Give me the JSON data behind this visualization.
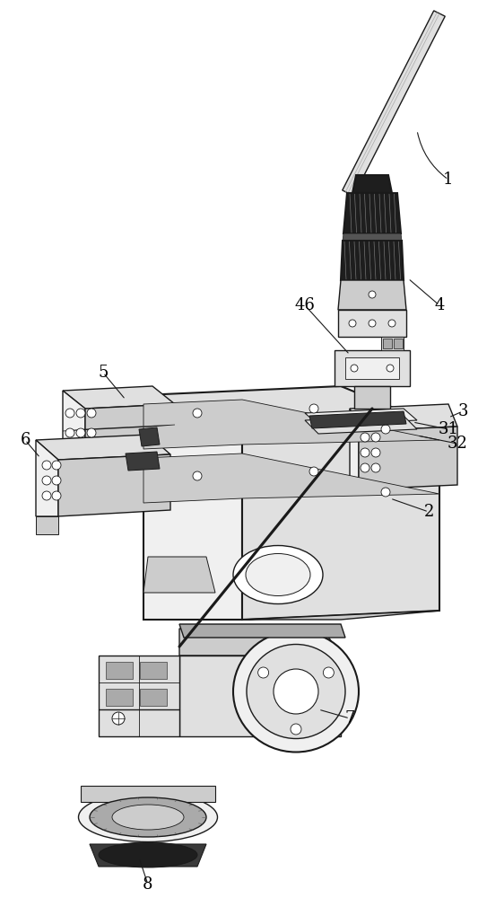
{
  "bg_color": "#ffffff",
  "lc": "#1a1a1a",
  "dark": "#1e1e1e",
  "mid_dark": "#3a3a3a",
  "gray1": "#888888",
  "gray2": "#aaaaaa",
  "gray3": "#cccccc",
  "gray4": "#e0e0e0",
  "gray5": "#f0f0f0",
  "label_fs": 13,
  "lw": 1.0,
  "lw_thick": 1.5
}
